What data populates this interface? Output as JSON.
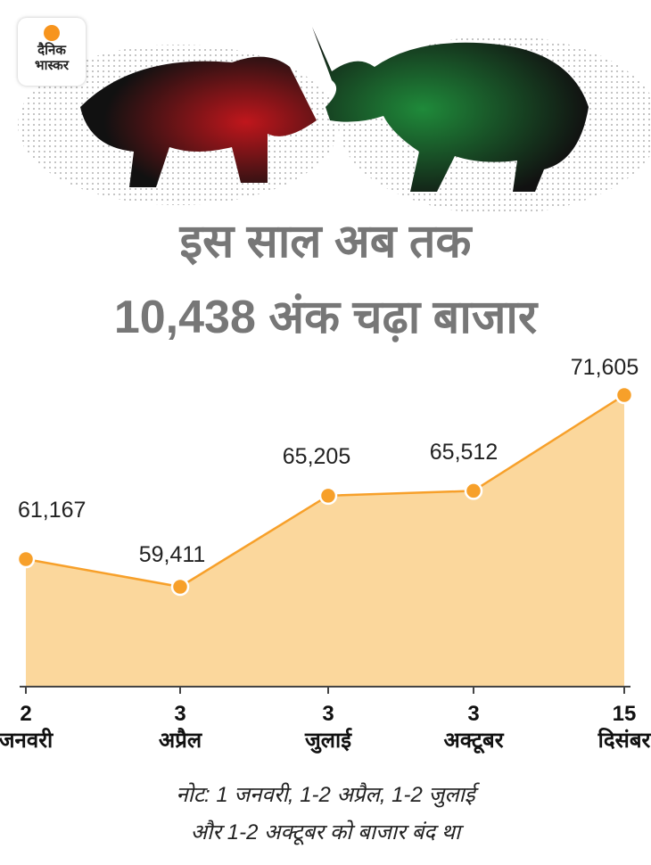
{
  "logo": [
    "दैनिक",
    "भास्कर"
  ],
  "chart_data": {
    "type": "area",
    "title": [
      "इस साल अब तक",
      "10,438 अंक चढ़ा बाजार"
    ],
    "categories": [
      "2 जनवरी",
      "3 अप्रैल",
      "3 जुलाई",
      "3 अक्टूबर",
      "15 दिसंबर"
    ],
    "values": [
      61167,
      59411,
      65205,
      65512,
      71605
    ],
    "value_labels": [
      "61,167",
      "59,411",
      "65,205",
      "65,512",
      "71,605"
    ],
    "color": "#f7a02a",
    "fill": "#fbd79c",
    "note": [
      "नोट: 1 जनवरी, 1-2 अप्रैल, 1-2 जुलाई",
      "और 1-2 अक्टूबर को बाजार बंद था"
    ]
  }
}
